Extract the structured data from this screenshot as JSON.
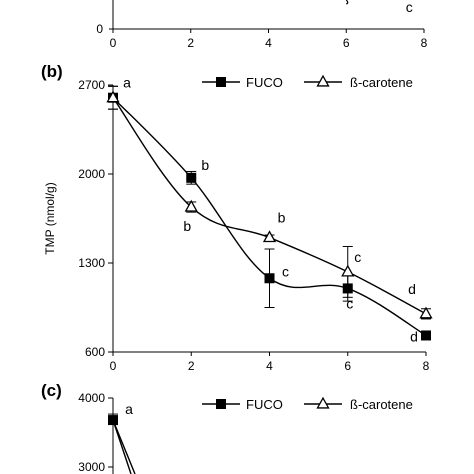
{
  "chart_data": [
    {
      "panel_label": "",
      "type": "scatter",
      "x_ticks": [
        "0",
        "2",
        "4",
        "6",
        "8"
      ],
      "xlim": [
        0,
        8
      ],
      "point_labels": [
        {
          "text": "c",
          "x": 7.62,
          "y_frac": 0.0
        }
      ],
      "partial_visible": true
    },
    {
      "panel_label": "(b)",
      "type": "line",
      "xlabel": "",
      "ylabel": "TMP (nmol/g)",
      "xlim": [
        0,
        8
      ],
      "ylim": [
        600,
        2700
      ],
      "x_ticks": [
        "0",
        "2",
        "4",
        "6",
        "8"
      ],
      "y_ticks": [
        "600",
        "1300",
        "2000",
        "2700"
      ],
      "legend_position": "top-right",
      "series": [
        {
          "name": "FUCO",
          "marker": "square",
          "x": [
            0,
            2,
            4,
            6,
            8
          ],
          "y": [
            2600,
            1970,
            1180,
            1100,
            730
          ],
          "err": [
            90,
            50,
            230,
            100,
            30
          ],
          "labels": [
            "a",
            "b",
            "c",
            "c",
            "d"
          ]
        },
        {
          "name": "ß-carotene",
          "marker": "triangle",
          "x": [
            0,
            2,
            4,
            6,
            8
          ],
          "y": [
            2600,
            1740,
            1500,
            1230,
            900
          ],
          "err": [
            90,
            40,
            20,
            200,
            40
          ],
          "labels": [
            "",
            "b",
            "b",
            "c",
            "d"
          ]
        }
      ]
    },
    {
      "panel_label": "(c)",
      "type": "line",
      "xlim": [
        0,
        8
      ],
      "ylim": [
        3000,
        4000
      ],
      "y_ticks": [
        "3000",
        "4000"
      ],
      "legend_position": "top-right",
      "series": [
        {
          "name": "FUCO",
          "marker": "square",
          "x": [
            0
          ],
          "y": [
            3680
          ],
          "labels": [
            "a"
          ]
        },
        {
          "name": "ß-carotene",
          "marker": "triangle",
          "x": [],
          "y": []
        }
      ],
      "partial_visible": true
    }
  ]
}
